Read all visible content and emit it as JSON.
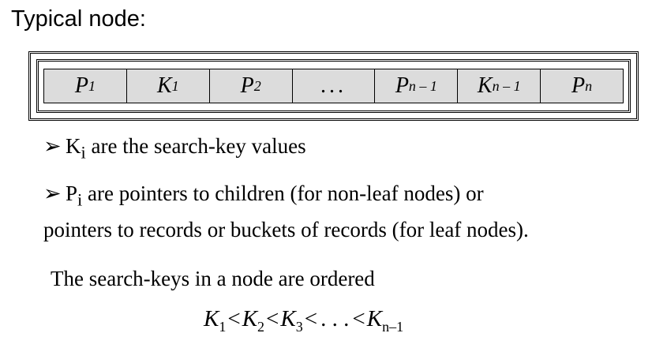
{
  "title": "Typical node:",
  "node": {
    "cells": [
      {
        "base": "P",
        "sub": "1"
      },
      {
        "base": "K",
        "sub": "1"
      },
      {
        "base": "P",
        "sub": "2"
      },
      {
        "base": "...",
        "sub": ""
      },
      {
        "base": "P",
        "sub": "n – 1"
      },
      {
        "base": "K",
        "sub": "n – 1"
      },
      {
        "base": "P",
        "sub": "n"
      }
    ]
  },
  "bullets": [
    {
      "symbol": "➢",
      "base": "K",
      "sub": "i",
      "text": " are the search-key values"
    },
    {
      "symbol": "➢",
      "base": "P",
      "sub": "i",
      "text": " are pointers to children (for non-leaf nodes) or",
      "line2": "pointers to records or buckets of records (for leaf nodes)."
    }
  ],
  "ordered_text": "The search-keys in a node are ordered",
  "formula": {
    "terms": [
      {
        "base": "K",
        "sub": "1"
      },
      {
        "base": "K",
        "sub": "2"
      },
      {
        "base": "K",
        "sub": "3"
      },
      {
        "base": ". . .",
        "sub": ""
      },
      {
        "base": "K",
        "sub": "n–1"
      }
    ],
    "operator": "<"
  }
}
